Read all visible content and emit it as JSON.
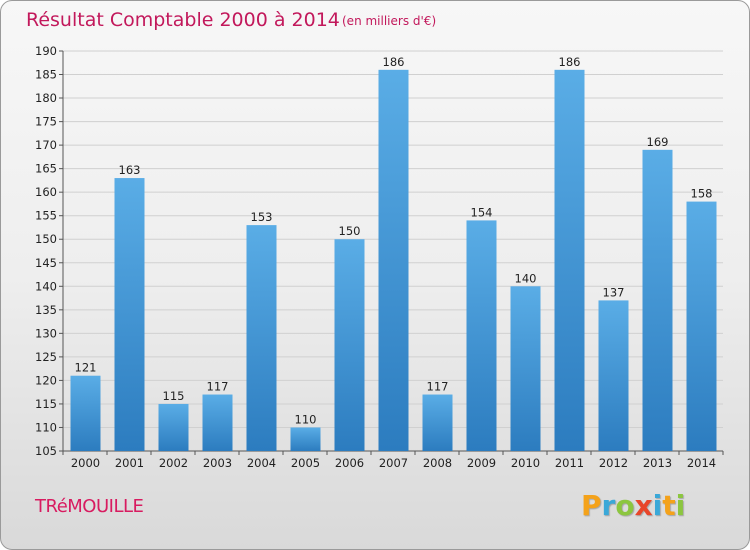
{
  "chart_data": {
    "type": "bar",
    "title": "Résultat Comptable 2000 à 2014",
    "subtitle": "(en milliers d'€)",
    "categories": [
      "2000",
      "2001",
      "2002",
      "2003",
      "2004",
      "2005",
      "2006",
      "2007",
      "2008",
      "2009",
      "2010",
      "2011",
      "2012",
      "2013",
      "2014"
    ],
    "values": [
      121,
      163,
      115,
      117,
      153,
      110,
      150,
      186,
      117,
      154,
      140,
      186,
      137,
      169,
      158
    ],
    "ylim": [
      105,
      190
    ],
    "yticks": [
      105,
      110,
      115,
      120,
      125,
      130,
      135,
      140,
      145,
      150,
      155,
      160,
      165,
      170,
      175,
      180,
      185,
      190
    ],
    "grid": true,
    "xlabel": "",
    "ylabel": ""
  },
  "footer": {
    "commune": "TRéMOUILLE",
    "logo": [
      "P",
      "r",
      "o",
      "x",
      "i",
      "t",
      "i"
    ]
  },
  "colors": {
    "title": "#c2185b",
    "bar_top": "#5aade6",
    "bar_bottom": "#2c7cbf",
    "grid": "#d0d0d0",
    "logo": [
      "#f4a21a",
      "#3aa8d8",
      "#8cc63f",
      "#e8462a",
      "#3aa8d8",
      "#f4a21a",
      "#8cc63f"
    ]
  }
}
